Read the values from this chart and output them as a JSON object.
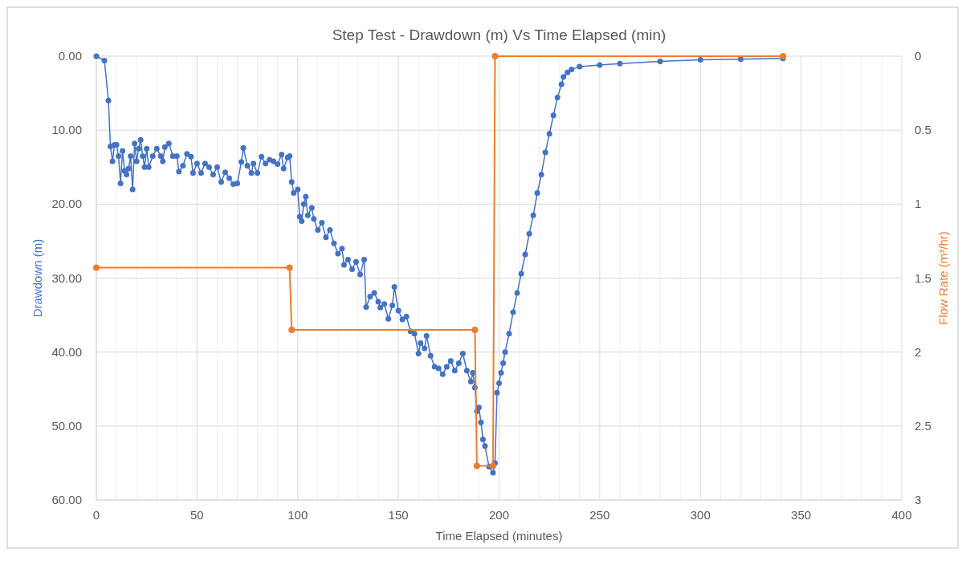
{
  "chart_data": {
    "type": "line",
    "title": "Step Test - Drawdown (m) Vs Time Elapsed (min)",
    "xlabel": "Time Elapsed (minutes)",
    "ylabel": "Drawdown (m)",
    "y2label": "Flow Rate (m³/hr)",
    "xlim": [
      0,
      400
    ],
    "xticks": [
      0,
      {
        "value": 10,
        "label": null
      },
      {
        "value": 20,
        "label": null
      },
      {
        "value": 30,
        "label": null
      },
      {
        "value": 40,
        "label": null
      },
      50,
      {
        "value": 60,
        "label": null
      },
      {
        "value": 70,
        "label": null
      },
      {
        "value": 80,
        "label": null
      },
      {
        "value": 90,
        "label": null
      },
      100,
      {
        "value": 110,
        "label": null
      },
      {
        "value": 120,
        "label": null
      },
      {
        "value": 130,
        "label": null
      },
      {
        "value": 140,
        "label": null
      },
      150,
      {
        "value": 160,
        "label": null
      },
      {
        "value": 170,
        "label": null
      },
      {
        "value": 180,
        "label": null
      },
      {
        "value": 190,
        "label": null
      },
      200,
      {
        "value": 210,
        "label": null
      },
      {
        "value": 220,
        "label": null
      },
      {
        "value": 230,
        "label": null
      },
      {
        "value": 240,
        "label": null
      },
      250,
      {
        "value": 260,
        "label": null
      },
      {
        "value": 270,
        "label": null
      },
      {
        "value": 280,
        "label": null
      },
      {
        "value": 290,
        "label": null
      },
      300,
      {
        "value": 310,
        "label": null
      },
      {
        "value": 320,
        "label": null
      },
      {
        "value": 330,
        "label": null
      },
      {
        "value": 340,
        "label": null
      },
      350,
      {
        "value": 360,
        "label": null
      },
      {
        "value": 370,
        "label": null
      },
      {
        "value": 380,
        "label": null
      },
      {
        "value": 390,
        "label": null
      },
      400
    ],
    "ylim": [
      60,
      0
    ],
    "yticks": [
      {
        "value": 0,
        "label": "0.00"
      },
      {
        "value": 10,
        "label": "10.00"
      },
      {
        "value": 20,
        "label": "20.00"
      },
      {
        "value": 30,
        "label": "30.00"
      },
      {
        "value": 40,
        "label": "40.00"
      },
      {
        "value": 50,
        "label": "50.00"
      },
      {
        "value": 60,
        "label": "60.00"
      }
    ],
    "y2lim": [
      3,
      0
    ],
    "y2ticks": [
      0,
      0.5,
      1,
      1.5,
      2,
      2.5,
      3
    ],
    "grid": true,
    "marker": "circle",
    "line_style": "solid",
    "series": [
      {
        "color": "#4472c4",
        "x": [
          0,
          4,
          6,
          7,
          8,
          9,
          10,
          11,
          12,
          13,
          14,
          15,
          16,
          17,
          18,
          19,
          20,
          21,
          22,
          23,
          24,
          25,
          26,
          28,
          30,
          32,
          33,
          34,
          36,
          38,
          40,
          41,
          43,
          45,
          47,
          48,
          50,
          52,
          54,
          56,
          58,
          60,
          62,
          64,
          66,
          68,
          70,
          72,
          73,
          75,
          77,
          78,
          80,
          82,
          84,
          86,
          88,
          90,
          92,
          93,
          95,
          96,
          97,
          98,
          100,
          101,
          102,
          103,
          104,
          105,
          107,
          108,
          110,
          112,
          114,
          116,
          118,
          120,
          122,
          123,
          125,
          127,
          129,
          131,
          133,
          134,
          136,
          138,
          140,
          141,
          143,
          145,
          147,
          148,
          150,
          152,
          154,
          156,
          158,
          160,
          161,
          163,
          164,
          166,
          168,
          170,
          172,
          174,
          176,
          178,
          180,
          182,
          184,
          186,
          187,
          188,
          189,
          190,
          191,
          192,
          193,
          195,
          197,
          198,
          199,
          200,
          201,
          202,
          203,
          205,
          207,
          209,
          211,
          213,
          215,
          217,
          219,
          221,
          223,
          225,
          227,
          229,
          231,
          232,
          234,
          236,
          240,
          250,
          260,
          280,
          300,
          320,
          341
        ],
        "values": [
          0,
          0.6,
          6,
          12.2,
          14.2,
          12,
          12,
          13.5,
          17.2,
          12.8,
          15.5,
          16,
          15.2,
          13.5,
          18,
          11.8,
          14.2,
          12.5,
          11.3,
          13.5,
          15,
          12.5,
          15,
          13.5,
          12.5,
          13.5,
          14.2,
          12.3,
          11.8,
          13.5,
          13.5,
          15.6,
          14.8,
          13.2,
          13.6,
          15.8,
          14.5,
          15.8,
          14.5,
          15,
          16,
          15,
          17,
          15.7,
          16.5,
          17.3,
          17.2,
          14.3,
          12.4,
          14.8,
          15.8,
          14.5,
          15.8,
          13.6,
          14.5,
          14,
          14.2,
          14.6,
          13.3,
          15.2,
          13.7,
          13.5,
          17,
          18.5,
          18,
          21.7,
          22.3,
          20,
          19,
          21.5,
          20.5,
          22,
          23.5,
          22.5,
          24.5,
          23.5,
          25.3,
          26.7,
          26,
          28.2,
          27.5,
          28.8,
          27.8,
          29.5,
          27.5,
          33.9,
          32.5,
          32,
          33.2,
          34,
          33.5,
          35.5,
          33.7,
          31.2,
          34.4,
          35.6,
          35.2,
          37.2,
          37.5,
          40.2,
          38.8,
          39.5,
          37.8,
          40.5,
          42,
          42.2,
          43,
          42,
          41.2,
          42.5,
          41.5,
          40.2,
          42.5,
          44,
          42.8,
          44.8,
          48,
          47.5,
          49.5,
          51.8,
          52.7,
          55.5,
          56.3,
          55,
          45.5,
          44.2,
          42.8,
          41.5,
          40,
          37.5,
          34.6,
          32,
          29.4,
          26.8,
          24,
          21.5,
          18.5,
          16,
          13,
          10.5,
          8,
          5.6,
          3.8,
          2.8,
          2.2,
          1.8,
          1.4,
          1.2,
          1,
          0.7,
          0.5,
          0.4,
          0.3
        ]
      },
      {
        "color": "#ed7d31",
        "axis": "y2",
        "x": [
          0,
          96,
          97,
          188,
          189,
          197,
          198,
          341
        ],
        "values": [
          1.43,
          1.43,
          1.85,
          1.85,
          2.77,
          2.77,
          0,
          0
        ]
      }
    ]
  }
}
